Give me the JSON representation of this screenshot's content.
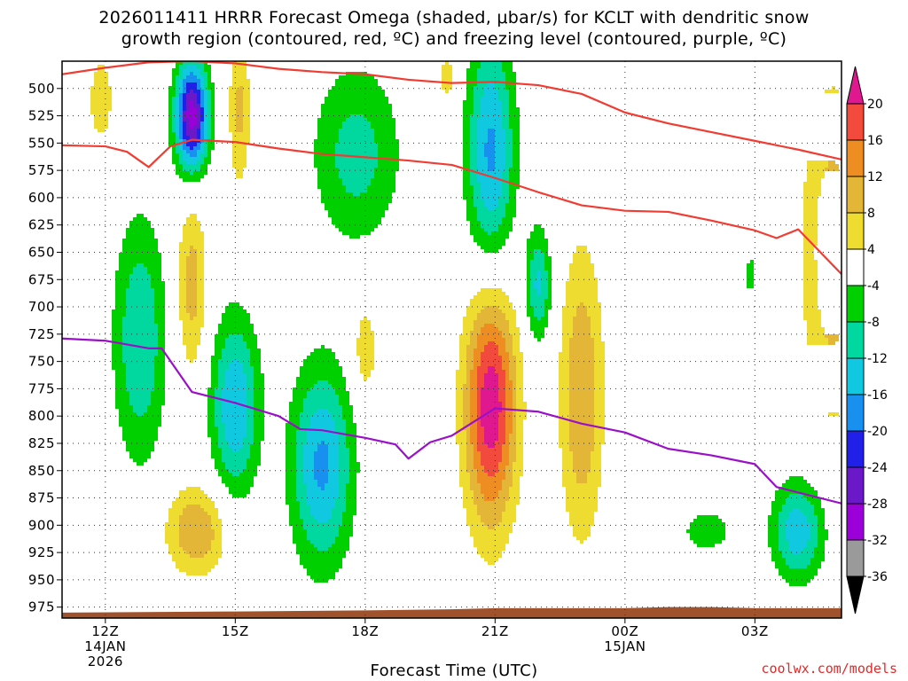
{
  "title_line1": "2026011411 HRRR Forecast Omega (shaded, μbar/s) for KCLT with dendritic snow",
  "title_line2": "growth region (contoured, red, ºC) and freezing level (contoured, purple, ºC)",
  "xlabel": "Forecast Time (UTC)",
  "credit": "coolwx.com/models",
  "chart_data": {
    "type": "heatmap",
    "x_hours": [
      11,
      11.5,
      12,
      12.5,
      13,
      13.5,
      14,
      14.5,
      15,
      15.5,
      16,
      16.5,
      17,
      17.5,
      18,
      18.5,
      19,
      19.5,
      20,
      20.5,
      21,
      21.5,
      22,
      22.5,
      23,
      23.5,
      24,
      24.5,
      25,
      25.5,
      26,
      26.5,
      27,
      27.5,
      28,
      28.5,
      29
    ],
    "x_ticks": [
      {
        "hour": 12,
        "label": "12Z",
        "sub1": "14JAN",
        "sub2": "2026"
      },
      {
        "hour": 15,
        "label": "15Z",
        "sub1": "",
        "sub2": ""
      },
      {
        "hour": 18,
        "label": "18Z",
        "sub1": "",
        "sub2": ""
      },
      {
        "hour": 21,
        "label": "21Z",
        "sub1": "",
        "sub2": ""
      },
      {
        "hour": 24,
        "label": "00Z",
        "sub1": "15JAN",
        "sub2": ""
      },
      {
        "hour": 27,
        "label": "03Z",
        "sub1": "",
        "sub2": ""
      }
    ],
    "y_levels": [
      500,
      525,
      550,
      575,
      600,
      625,
      650,
      675,
      700,
      725,
      750,
      775,
      800,
      825,
      850,
      875,
      900,
      925,
      950,
      975
    ],
    "ylim": [
      475,
      985
    ],
    "xlim": [
      11,
      29
    ],
    "colorbar": {
      "bounds": [
        -36,
        -32,
        -28,
        -24,
        -20,
        -16,
        -12,
        -8,
        -4,
        4,
        8,
        12,
        16,
        20
      ],
      "colors": [
        "#9a9a9a",
        "#9c00d8",
        "#6a18c8",
        "#2020e8",
        "#1890f0",
        "#10c8e0",
        "#00d8a0",
        "#00d000",
        "#ffffff",
        "#eedd30",
        "#e4b638",
        "#ee8e22",
        "#f24a3c",
        "#e01890"
      ],
      "under_color": "#000000",
      "over_color": "#e01890"
    },
    "omega_features": [
      {
        "name": "omega-updraft-14z-upper",
        "hour": 14.0,
        "p": 525,
        "sh": 0.38,
        "sp": 50,
        "peak": -30
      },
      {
        "name": "omega-updraft-17z-upper",
        "hour": 17.8,
        "p": 560,
        "sh": 1.0,
        "sp": 80,
        "peak": -10
      },
      {
        "name": "omega-updraft-21z-upper",
        "hour": 20.9,
        "p": 560,
        "sh": 0.55,
        "sp": 110,
        "peak": -17
      },
      {
        "name": "omega-updraft-22z-mid",
        "hour": 22.0,
        "p": 680,
        "sh": 0.3,
        "sp": 50,
        "peak": -13
      },
      {
        "name": "omega-updraft-12z-mid",
        "hour": 12.8,
        "p": 730,
        "sh": 0.6,
        "sp": 110,
        "peak": -12
      },
      {
        "name": "omega-updraft-15z-low",
        "hour": 15.0,
        "p": 790,
        "sh": 0.55,
        "sp": 80,
        "peak": -16
      },
      {
        "name": "omega-updraft-17z-low",
        "hour": 17.0,
        "p": 845,
        "sh": 0.7,
        "sp": 90,
        "peak": -17
      },
      {
        "name": "omega-updraft-01z-low",
        "hour": 25.9,
        "p": 905,
        "sh": 0.6,
        "sp": 20,
        "peak": -7
      },
      {
        "name": "omega-updraft-04z-low",
        "hour": 28.0,
        "p": 905,
        "sh": 0.6,
        "sp": 45,
        "peak": -15
      },
      {
        "name": "omega-updraft-03z-mid",
        "hour": 26.9,
        "p": 670,
        "sh": 0.18,
        "sp": 20,
        "peak": -6
      },
      {
        "name": "omega-sink-21z-low",
        "hour": 20.9,
        "p": 790,
        "sh": 0.6,
        "sp": 110,
        "peak": 23
      },
      {
        "name": "omega-sink-14z-low",
        "hour": 14.1,
        "p": 905,
        "sh": 0.7,
        "sp": 40,
        "peak": 12
      },
      {
        "name": "omega-sink-23z-mid",
        "hour": 23.0,
        "p": 780,
        "sh": 0.5,
        "sp": 130,
        "peak": 12
      },
      {
        "name": "omega-sink-04z-mid",
        "hour": 28.8,
        "p": 650,
        "sh": 0.7,
        "sp": 150,
        "peak": 11
      },
      {
        "name": "omega-sink-14z-mid",
        "hour": 14.0,
        "p": 680,
        "sh": 0.35,
        "sp": 80,
        "peak": 10
      },
      {
        "name": "omega-sink-18z-mid",
        "hour": 18.0,
        "p": 740,
        "sh": 0.3,
        "sp": 45,
        "peak": 7
      },
      {
        "name": "omega-sink-15z-upper",
        "hour": 15.1,
        "p": 520,
        "sh": 0.25,
        "sp": 70,
        "peak": 9
      },
      {
        "name": "omega-sink-12z-upper",
        "hour": 11.9,
        "p": 510,
        "sh": 0.35,
        "sp": 50,
        "peak": 6
      },
      {
        "name": "omega-sink-19z-upper",
        "hour": 19.9,
        "p": 490,
        "sh": 0.25,
        "sp": 25,
        "peak": 6
      }
    ],
    "dgz_warm_edge": {
      "hours": [
        11,
        12,
        13,
        14,
        15,
        16,
        17,
        18,
        19,
        20,
        21,
        22,
        23,
        24,
        25,
        26,
        27,
        28,
        29
      ],
      "pressure": [
        487,
        481,
        476,
        475,
        477,
        482,
        485,
        487,
        492,
        495,
        494,
        497,
        505,
        522,
        532,
        540,
        548,
        556,
        565
      ]
    },
    "dgz_cold_edge": {
      "hours": [
        11,
        12,
        12.5,
        13,
        13.5,
        14,
        15,
        16,
        17,
        18,
        19,
        20,
        21,
        22,
        23,
        24,
        25,
        26,
        27,
        27.5,
        28,
        29
      ],
      "pressure": [
        552,
        553,
        558,
        572,
        553,
        547,
        549,
        555,
        560,
        563,
        566,
        570,
        582,
        595,
        607,
        612,
        613,
        621,
        630,
        637,
        629,
        670
      ]
    },
    "freezing_level": {
      "hours": [
        11,
        12,
        13,
        13.3,
        14,
        15,
        16,
        16.5,
        17,
        18,
        18.7,
        19,
        19.5,
        20,
        21,
        22,
        23,
        24,
        25,
        26,
        27,
        27.5,
        29
      ],
      "pressure": [
        729,
        731,
        738,
        738,
        778,
        788,
        800,
        812,
        813,
        820,
        826,
        839,
        824,
        818,
        793,
        796,
        807,
        815,
        830,
        836,
        844,
        865,
        880
      ]
    },
    "terrain": {
      "hours": [
        11,
        15,
        18,
        20,
        21,
        24,
        25,
        26,
        27,
        29
      ],
      "pressure": [
        980,
        979,
        978,
        977,
        976,
        976,
        975,
        975,
        976,
        976
      ]
    }
  }
}
